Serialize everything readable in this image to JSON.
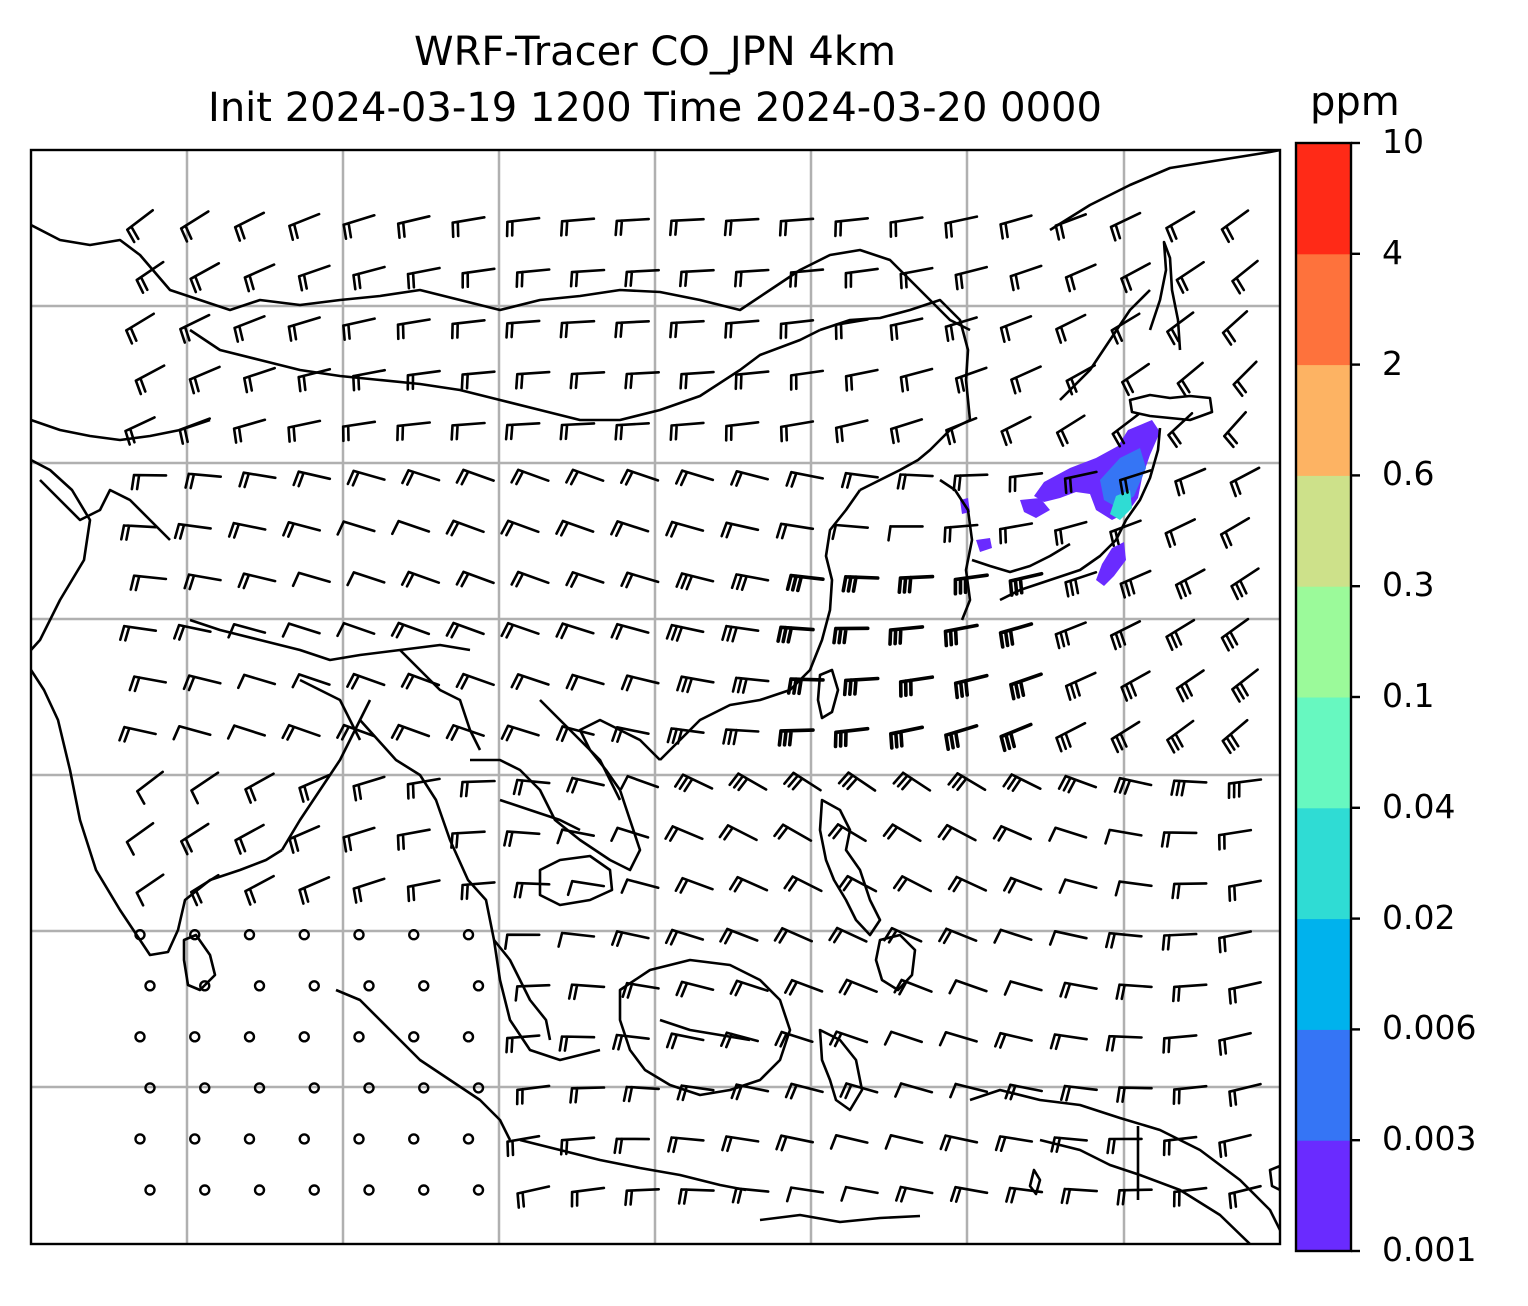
{
  "title_line1": "WRF-Tracer CO_JPN 4km",
  "title_line2": "Init 2024-03-19 1200 Time 2024-03-20 0000",
  "colorbar": {
    "unit": "ppm",
    "levels": [
      "0.001",
      "0.003",
      "0.006",
      "0.02",
      "0.04",
      "0.1",
      "0.3",
      "0.6",
      "2",
      "4",
      "10"
    ],
    "colors": [
      "#6a2bff",
      "#3575f5",
      "#00b2ed",
      "#2fdcd4",
      "#67f8c0",
      "#9bfa9a",
      "#cde18a",
      "#fdb363",
      "#fe723c",
      "#ff2a17"
    ]
  },
  "map": {
    "grid": "on",
    "features": [
      "coastlines",
      "country-borders",
      "wind-barbs",
      "co-tracer-plume"
    ],
    "plume_region": "Japan"
  }
}
